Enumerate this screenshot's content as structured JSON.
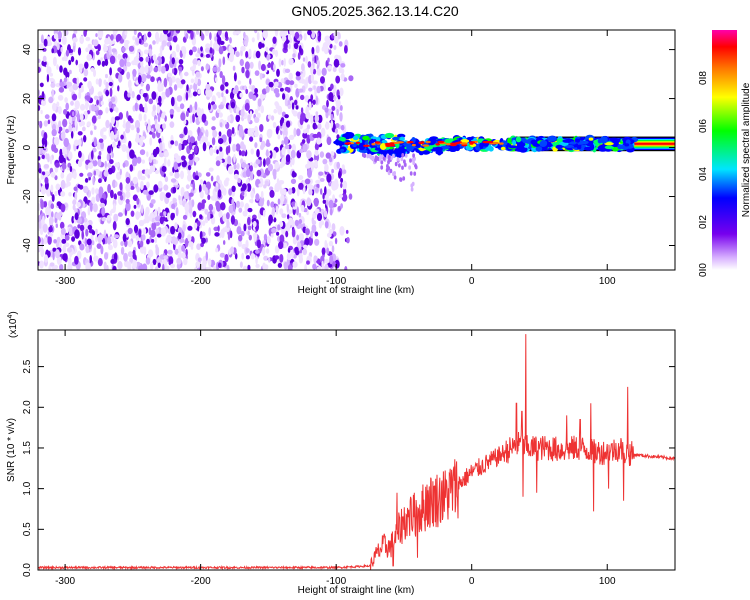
{
  "title": "GN05.2025.362.13.14.C20",
  "colors": {
    "snr_line": "#ee3333",
    "noise_dot": "#7711ee",
    "axis": "#000000"
  },
  "chart_data": [
    {
      "type": "heatmap",
      "name": "spectrogram",
      "xlabel": "Height of straight line (km)",
      "ylabel": "Frequency (Hz)",
      "xlim": [
        -320,
        150
      ],
      "ylim": [
        -50,
        48
      ],
      "x_ticks": [
        -300,
        -200,
        -100,
        0,
        100
      ],
      "x_tick_labels": [
        "-300",
        "-200",
        "-100",
        "0",
        "100"
      ],
      "y_ticks": [
        -40,
        -20,
        0,
        20,
        40
      ],
      "y_tick_labels": [
        "-40",
        "-20",
        "0",
        "20",
        "40"
      ],
      "noise_region_x": [
        -320,
        -95
      ],
      "signal_band": {
        "x_start": -100,
        "x_end": 150,
        "center_hz": 1.5,
        "half_width_hz": 2.5
      },
      "colorbar": {
        "label": "Normalized spectral amplitude",
        "range": [
          0,
          1
        ],
        "ticks": [
          0.0,
          0.2,
          0.4,
          0.6,
          0.8
        ],
        "tick_labels": [
          "0.0",
          "0.2",
          "0.4",
          "0.6",
          "0.8"
        ],
        "stops": [
          "#ffffff",
          "#6600ee",
          "#0000ff",
          "#00ffff",
          "#00ff00",
          "#ffff00",
          "#ff8800",
          "#ff0000",
          "#ff00aa"
        ]
      }
    },
    {
      "type": "line",
      "name": "snr",
      "xlabel": "Height of straight line (km)",
      "ylabel": "SNR (10 * v/v)",
      "scale_label": "(x10",
      "scale_exponent": "4",
      "xlim": [
        -320,
        150
      ],
      "ylim": [
        0,
        2.95
      ],
      "x_ticks": [
        -300,
        -200,
        -100,
        0,
        100
      ],
      "x_tick_labels": [
        "-300",
        "-200",
        "-100",
        "0",
        "100"
      ],
      "y_ticks": [
        0.0,
        0.5,
        1.0,
        1.5,
        2.0,
        2.5
      ],
      "y_tick_labels": [
        "0.0",
        "0.5",
        "1.0",
        "1.5",
        "2.0",
        "2.5"
      ],
      "series": [
        {
          "name": "SNR",
          "x": [
            -320,
            -100,
            -75,
            -70,
            -65,
            -60,
            -55,
            -50,
            -40,
            -30,
            -20,
            -10,
            0,
            10,
            20,
            30,
            35,
            40,
            45,
            55,
            65,
            80,
            90,
            100,
            110,
            112,
            120,
            130,
            150
          ],
          "y": [
            0.03,
            0.03,
            0.05,
            0.2,
            0.3,
            0.28,
            0.45,
            0.6,
            0.7,
            0.85,
            0.9,
            1.05,
            1.2,
            1.3,
            1.4,
            1.5,
            1.55,
            1.5,
            1.5,
            1.5,
            1.48,
            1.5,
            1.45,
            1.45,
            1.5,
            1.45,
            1.42,
            1.4,
            1.37
          ]
        }
      ],
      "spikes": [
        {
          "x": 40,
          "y": 2.9
        },
        {
          "x": 33,
          "y": 2.05
        },
        {
          "x": 37,
          "y": 1.95
        },
        {
          "x": 88,
          "y": 2.05
        },
        {
          "x": 115,
          "y": 2.25
        },
        {
          "x": 70,
          "y": 1.9
        },
        {
          "x": 80,
          "y": 1.85
        },
        {
          "x": -55,
          "y": 0.95
        },
        {
          "x": -45,
          "y": 0.9
        },
        {
          "x": -33,
          "y": 1.05
        },
        {
          "x": -22,
          "y": 1.1
        }
      ],
      "dips": [
        {
          "x": 38,
          "y": 0.9
        },
        {
          "x": 48,
          "y": 0.95
        },
        {
          "x": 90,
          "y": 0.72
        },
        {
          "x": 101,
          "y": 1.0
        },
        {
          "x": 112,
          "y": 0.85
        },
        {
          "x": -58,
          "y": 0.05
        },
        {
          "x": -40,
          "y": 0.15
        }
      ]
    }
  ]
}
